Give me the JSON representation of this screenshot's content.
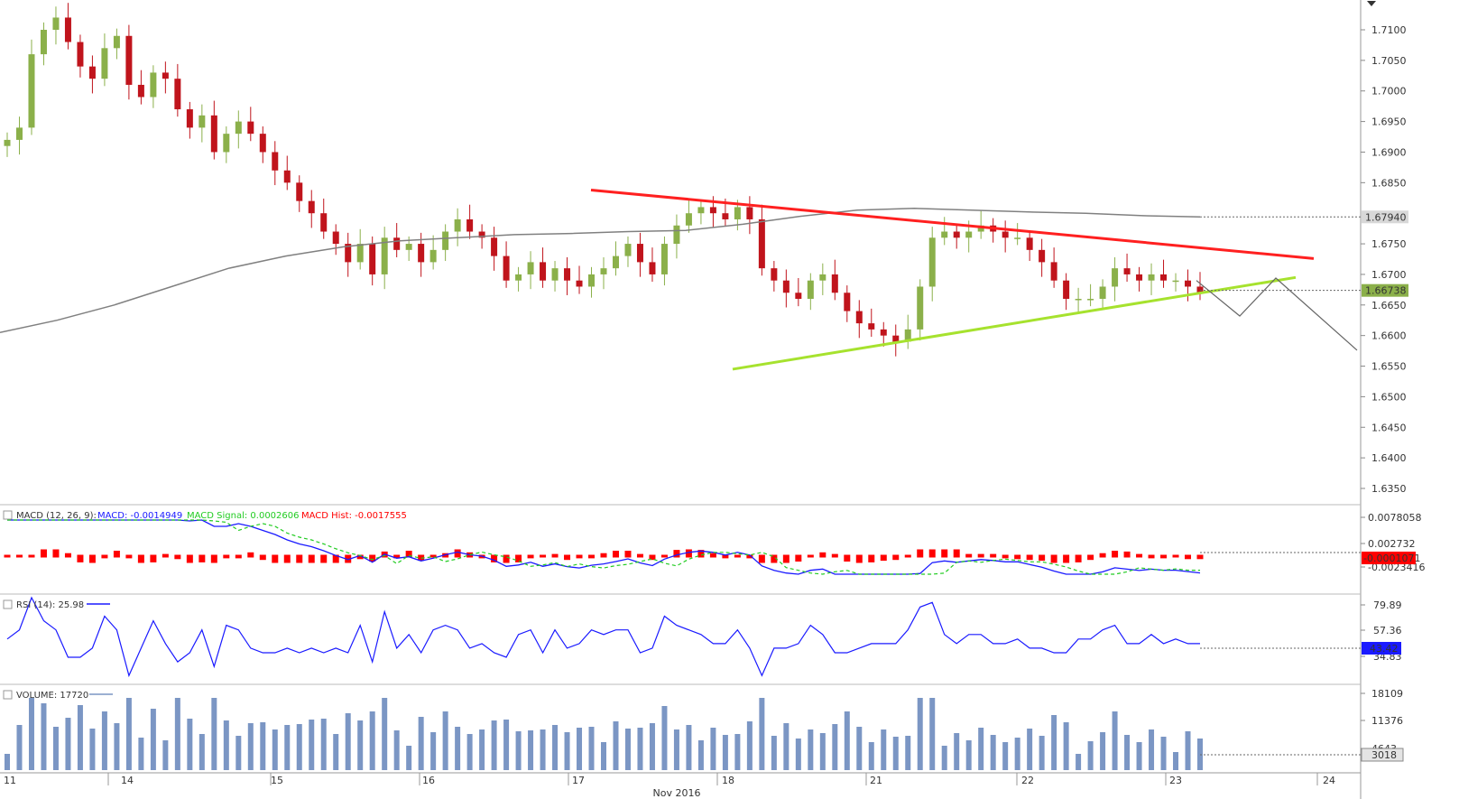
{
  "chart_data": [
    {
      "pane": "price",
      "type": "candlestick",
      "x_dates": [
        "11",
        "14",
        "15",
        "16",
        "17",
        "18",
        "21",
        "22",
        "23",
        "24"
      ],
      "x_month_label": "Nov 2016",
      "y_ticks": [
        "1.7100",
        "1.7050",
        "1.7000",
        "1.6950",
        "1.6900",
        "1.6850",
        "1.6750",
        "1.6700",
        "1.6650",
        "1.6600",
        "1.6550",
        "1.6500",
        "1.6450",
        "1.6400",
        "1.6350"
      ],
      "ylim": [
        1.63,
        1.7145
      ],
      "current_price_tag": "1.66738",
      "ma_price_tag": "1.67940",
      "current_price": 1.66738,
      "ma_value": 1.6794,
      "close_path": [
        1.692,
        1.694,
        1.706,
        1.71,
        1.712,
        1.708,
        1.704,
        1.702,
        1.707,
        1.709,
        1.701,
        1.699,
        1.703,
        1.702,
        1.697,
        1.694,
        1.696,
        1.69,
        1.693,
        1.695,
        1.693,
        1.69,
        1.687,
        1.685,
        1.682,
        1.68,
        1.677,
        1.675,
        1.672,
        1.675,
        1.67,
        1.676,
        1.674,
        1.675,
        1.672,
        1.674,
        1.677,
        1.679,
        1.677,
        1.676,
        1.673,
        1.669,
        1.67,
        1.672,
        1.669,
        1.671,
        1.669,
        1.668,
        1.67,
        1.671,
        1.673,
        1.675,
        1.672,
        1.67,
        1.675,
        1.678,
        1.68,
        1.681,
        1.68,
        1.679,
        1.681,
        1.679,
        1.671,
        1.669,
        1.667,
        1.666,
        1.669,
        1.67,
        1.667,
        1.664,
        1.662,
        1.661,
        1.66,
        1.659,
        1.661,
        1.668,
        1.676,
        1.677,
        1.676,
        1.677,
        1.678,
        1.677,
        1.676,
        1.676,
        1.674,
        1.672,
        1.669,
        1.666,
        1.666,
        1.666,
        1.668,
        1.671,
        1.67,
        1.669,
        1.67,
        1.669,
        1.669,
        1.668,
        1.667
      ],
      "ma_path": [
        1.6605,
        1.6625,
        1.665,
        1.668,
        1.671,
        1.673,
        1.6745,
        1.6755,
        1.676,
        1.6765,
        1.6767,
        1.677,
        1.6772,
        1.6782,
        1.6795,
        1.6805,
        1.6808,
        1.6805,
        1.6802,
        1.68,
        1.6796,
        1.6794
      ],
      "trendlines": [
        {
          "name": "resistance",
          "color": "#ff2020",
          "from": [
            "17",
            1.6838
          ],
          "to": [
            "24",
            1.6726
          ]
        },
        {
          "name": "support",
          "color": "#a6e22e",
          "from": [
            "18",
            1.6545
          ],
          "to": [
            "24",
            1.6695
          ]
        }
      ],
      "projection": [
        1.669,
        1.6632,
        1.6694,
        1.6576
      ],
      "colors": {
        "up": "#8bb04a",
        "down": "#c0141c",
        "ma": "#808080"
      }
    },
    {
      "pane": "macd",
      "type": "line",
      "label_prefix": "MACD (12, 26, 9):",
      "macd_label": "MACD: -0.0014949",
      "signal_label": "MACD Signal: 0.0002606",
      "hist_label": "MACD Hist: -0.0017555",
      "y_ticks": [
        "0.0078058",
        "0.002732",
        "-0.0023416"
      ],
      "value_tag": "-0.0001071",
      "colors": {
        "macd": "#1a1aff",
        "signal": "#22cc22",
        "hist": "#ff0000"
      }
    },
    {
      "pane": "rsi",
      "type": "line",
      "label": "RSI (14): 25.98",
      "y_ticks": [
        "79.89",
        "57.36",
        "34.83"
      ],
      "value_tag": "43.42",
      "color": "#1a1aff"
    },
    {
      "pane": "volume",
      "type": "bar",
      "label": "VOLUME: 17720",
      "y_ticks": [
        "18109",
        "11376",
        "4643"
      ],
      "value_tag": "3018",
      "color": "#7b96c4"
    }
  ]
}
